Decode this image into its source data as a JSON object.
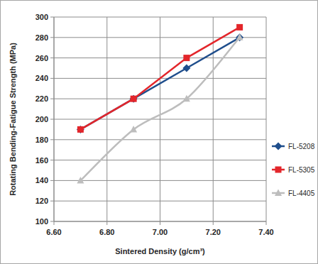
{
  "chart_data": {
    "type": "line",
    "x_label": "Sintered Density (g/cm³)",
    "y_label": "Rotating Bending-Fatigue Strength (MPa)",
    "x": [
      6.7,
      6.9,
      7.1,
      7.3
    ],
    "series": [
      {
        "name": "FL-5208",
        "color": "#1f4e8c",
        "marker": "diamond",
        "line_style": "solid",
        "values": [
          190,
          220,
          250,
          280
        ]
      },
      {
        "name": "FL-5305",
        "color": "#e3262b",
        "marker": "square",
        "line_style": "solid",
        "values": [
          190,
          220,
          260,
          290
        ]
      },
      {
        "name": "FL-4405",
        "color": "#bdbdbd",
        "marker": "triangle",
        "line_style": "smooth",
        "values": [
          140,
          190,
          220,
          280
        ]
      }
    ],
    "xlim": [
      6.6,
      7.4
    ],
    "xticks": [
      {
        "value": 6.6,
        "label": "6.60"
      },
      {
        "value": 6.8,
        "label": "6.80"
      },
      {
        "value": 7.0,
        "label": "7.00"
      },
      {
        "value": 7.2,
        "label": "7.20"
      },
      {
        "value": 7.4,
        "label": "7.40"
      }
    ],
    "ylim": [
      100,
      300
    ],
    "yticks": [
      100,
      120,
      140,
      160,
      180,
      200,
      220,
      240,
      260,
      280,
      300
    ],
    "grid": true,
    "legend": "right"
  }
}
